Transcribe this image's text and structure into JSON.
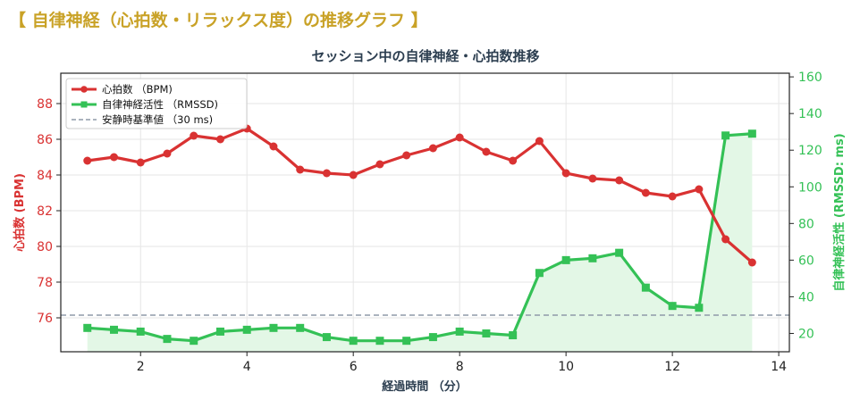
{
  "page": {
    "heading": "【 自律神経（心拍数・リラックス度）の推移グラフ 】"
  },
  "colors": {
    "heading": "#c9a227",
    "heart_rate": "#d93232",
    "hrv": "#34c156",
    "hrv_fill": "#e3f7e6",
    "baseline": "#8f9aa8",
    "grid": "#e6e6e6",
    "axis_title": "#2c3e50"
  },
  "chart_data": {
    "type": "line",
    "title": "セッション中の自律神経・心拍数推移",
    "xlabel": "経過時間 （分）",
    "ylabel_left": "心拍数 (BPM)",
    "ylabel_right": "自律神経活性 (RMSSD: ms)",
    "xlim": [
      0.5,
      14.2
    ],
    "xticks": [
      2,
      4,
      6,
      8,
      10,
      12,
      14
    ],
    "ylim_left": [
      74.1,
      89.7
    ],
    "yticks_left": [
      76,
      78,
      80,
      82,
      84,
      86,
      88
    ],
    "ylim_right": [
      10,
      162
    ],
    "yticks_right": [
      20,
      40,
      60,
      80,
      100,
      120,
      140,
      160
    ],
    "grid": true,
    "legend_position": "top-left",
    "x": [
      1,
      1.5,
      2,
      2.5,
      3,
      3.5,
      4,
      4.5,
      5,
      5.5,
      6,
      6.5,
      7,
      7.5,
      8,
      8.5,
      9,
      9.5,
      10,
      10.5,
      11,
      11.5,
      12,
      12.5,
      13,
      13.5
    ],
    "series": [
      {
        "name": "心拍数 （BPM)",
        "axis": "left",
        "marker": "circle",
        "values": [
          84.8,
          85.0,
          84.7,
          85.2,
          86.2,
          86.0,
          86.6,
          85.6,
          84.3,
          84.1,
          84.0,
          84.6,
          85.1,
          85.5,
          86.1,
          85.3,
          84.8,
          85.9,
          84.1,
          83.8,
          83.7,
          83.0,
          82.8,
          83.2,
          80.4,
          79.1
        ]
      },
      {
        "name": "自律神経活性 （RMSSD)",
        "axis": "right",
        "marker": "square",
        "values": [
          23,
          22,
          21,
          17,
          16,
          21,
          22,
          23,
          23,
          18,
          16,
          16,
          16,
          18,
          21,
          20,
          19,
          53,
          60,
          61,
          64,
          45,
          35,
          34,
          128,
          129
        ]
      }
    ],
    "baseline": {
      "name": "安静時基準値 （30 ms)",
      "axis": "right",
      "value": 30
    }
  }
}
